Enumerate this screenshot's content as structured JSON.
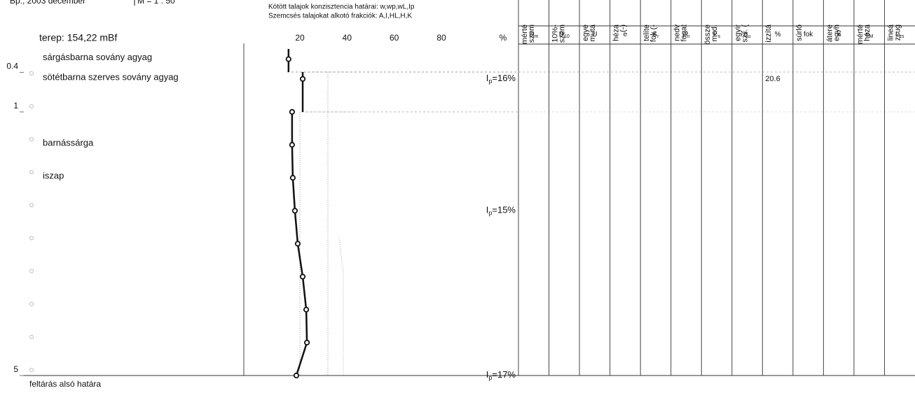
{
  "header": {
    "place_date": "Bp., 2003 december",
    "scale": "M = 1 : 50",
    "legend": [
      "Kötött talajok konzisztencia határai: w,wp,wL,Ip",
      "Szemcsés talajokat alkotó frakciók: A,I,HL,H,K"
    ],
    "terrain": "terep: 154,22  mBf"
  },
  "depth_axis": {
    "ticks": [
      0.4,
      1,
      5
    ]
  },
  "layers": [
    {
      "depth": 0.2,
      "name": "sárgásbarna sovány agyag"
    },
    {
      "depth": 0.5,
      "name": "sötétbarna szerves sovány agyag"
    },
    {
      "depth": 1.5,
      "name": "barnássárga"
    },
    {
      "depth": 2,
      "name": "iszap"
    }
  ],
  "bottom_label": "feltárás alsó határa",
  "w_axis": {
    "ticks": [
      20,
      40,
      60,
      80
    ],
    "unit": "%"
  },
  "samples": [
    {
      "depth": 0.2,
      "w": 15.2
    },
    {
      "depth": 0.5,
      "w": 21.2
    }
  ],
  "profile": [
    {
      "depth": 1,
      "w": 16.7
    },
    {
      "depth": 1.5,
      "w": 16.7
    },
    {
      "depth": 2,
      "w": 17.0
    },
    {
      "depth": 2.5,
      "w": 17.9
    },
    {
      "depth": 3,
      "w": 19.1
    },
    {
      "depth": 3.5,
      "w": 21.2
    },
    {
      "depth": 4,
      "w": 22.7
    },
    {
      "depth": 4.5,
      "w": 23.0
    },
    {
      "depth": 5,
      "w": 18.5
    }
  ],
  "ip_labels": [
    {
      "depth": 0.5,
      "main": "I",
      "sub": "p",
      "rest": "=16%"
    },
    {
      "depth": 2.5,
      "main": "I",
      "sub": "p",
      "rest": "=15%"
    },
    {
      "depth": 5,
      "main": "I",
      "sub": "p",
      "rest": "=17%"
    }
  ],
  "table": {
    "columns": [
      {
        "header": [
          "mérté",
          "szem"
        ],
        "symbol": "D",
        "sub": "m"
      },
      {
        "header": [
          "10%-",
          "szem"
        ],
        "symbol": "D",
        "sub": "10"
      },
      {
        "header": [
          "egye",
          "muta"
        ],
        "symbol": "U"
      },
      {
        "header": [
          "héza",
          "(-)"
        ],
        "symbol": "e"
      },
      {
        "header": [
          "telíte",
          "fok (-"
        ],
        "symbol": "S",
        "sub": "r"
      },
      {
        "header": [
          "nedv",
          "fogat"
        ],
        "symbol": "ρ",
        "sub": "n"
      },
      {
        "header": [
          "össze",
          "mod."
        ],
        "symbol": "E",
        "sub": "s"
      },
      {
        "header": [
          "egyir",
          "szil. ("
        ],
        "symbol": "q",
        "sub": "u"
      },
      {
        "header": [
          "izzítá"
        ],
        "symbol": "%",
        "values": [
          {
            "depth": 0.5,
            "text": "20.6"
          }
        ]
      },
      {
        "header": [
          "súrló"
        ],
        "symbol": "fok"
      },
      {
        "header": [
          "átere",
          "egyh"
        ],
        "symbol": "k"
      },
      {
        "header": [
          "mérté",
          "héza"
        ],
        "symbol": "e",
        "sub": "M"
      },
      {
        "header": [
          "lineá",
          "zsug"
        ],
        "symbol": "L",
        "sub": "zs"
      }
    ]
  }
}
